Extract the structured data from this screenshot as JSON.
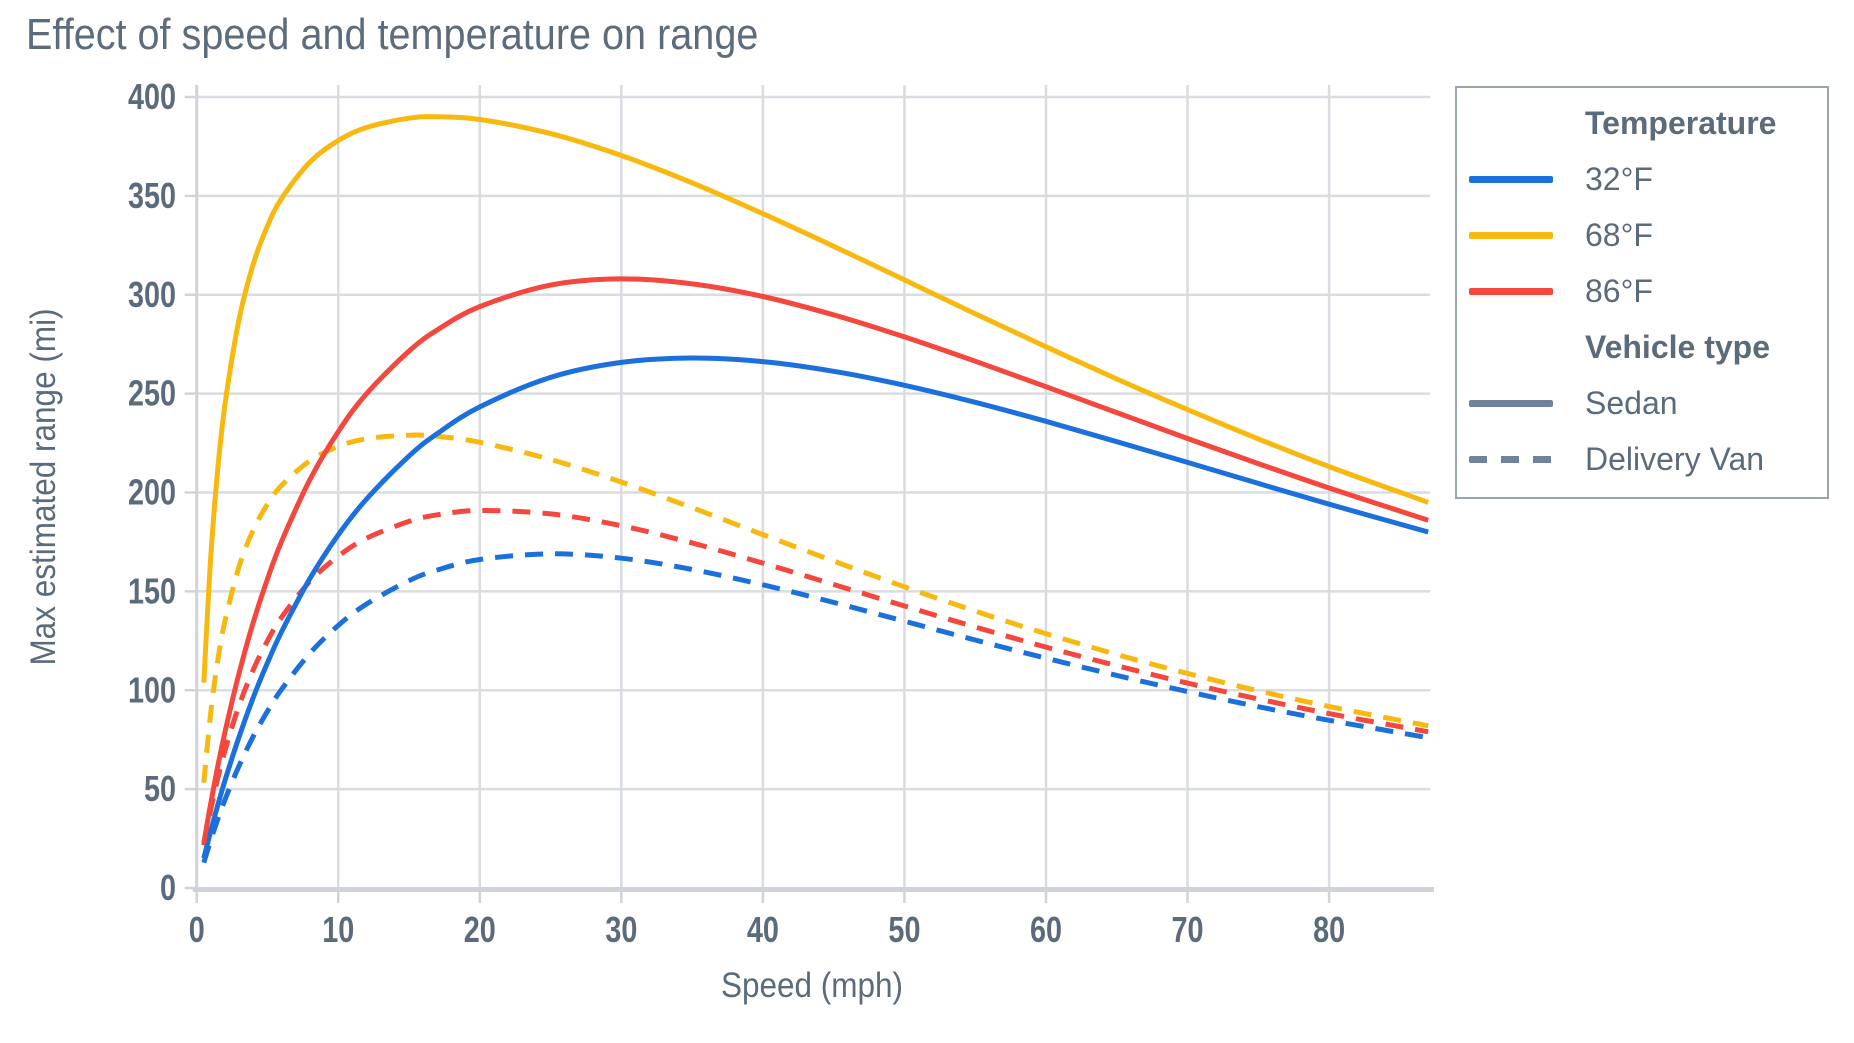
{
  "title": "Effect of speed and temperature on range",
  "axes": {
    "x_label": "Speed (mph)",
    "y_label": "Max estimated range (mi)"
  },
  "colors": {
    "blue": "#1b70dc",
    "yellow": "#f7b80f",
    "red": "#f4473d",
    "legend_gray": "#71839b",
    "text": "#5b6b7c",
    "grid": "#d9dce1",
    "axis": "#d0d4da"
  },
  "legend": {
    "temperature_header": "Temperature",
    "temperature_items": [
      {
        "label": "32°F",
        "color": "#1b70dc"
      },
      {
        "label": "68°F",
        "color": "#f7b80f"
      },
      {
        "label": "86°F",
        "color": "#f4473d"
      }
    ],
    "vehicle_header": "Vehicle type",
    "vehicle_items": [
      {
        "label": "Sedan",
        "line_style": "solid",
        "color": "#71839b"
      },
      {
        "label": "Delivery Van",
        "line_style": "dashed",
        "color": "#71839b"
      }
    ]
  },
  "chart_data": {
    "type": "line",
    "title": "Effect of speed and temperature on range",
    "xlabel": "Speed (mph)",
    "ylabel": "Max estimated range (mi)",
    "xlim": [
      0,
      87
    ],
    "ylim": [
      0,
      406
    ],
    "x_ticks": [
      0,
      10,
      20,
      30,
      40,
      50,
      60,
      70,
      80
    ],
    "y_ticks": [
      0,
      50,
      100,
      150,
      200,
      250,
      300,
      350,
      400
    ],
    "grid": true,
    "legend_position": "upper right",
    "x": [
      0.5,
      1,
      1.5,
      2,
      3,
      4,
      5,
      6,
      8,
      10,
      12,
      15,
      17,
      20,
      25,
      30,
      35,
      40,
      45,
      50,
      55,
      60,
      65,
      70,
      75,
      80,
      87
    ],
    "series": [
      {
        "name": "32°F Sedan",
        "temperature": "32°F",
        "vehicle": "Sedan",
        "color": "#1b70dc",
        "dash": "solid",
        "values": [
          15.0,
          29.1,
          42.1,
          54.4,
          76.6,
          96.4,
          113.9,
          129.6,
          156.5,
          178.6,
          196.7,
          218.4,
          229.8,
          243.3,
          258.2,
          265.8,
          268.0,
          266.2,
          261.3,
          254.2,
          245.6,
          236.0,
          225.7,
          215.2,
          204.6,
          194.1,
          180.0
        ]
      },
      {
        "name": "68°F Sedan",
        "temperature": "68°F",
        "vehicle": "Sedan",
        "color": "#f7b80f",
        "dash": "solid",
        "values": [
          103.8,
          168.5,
          212.6,
          244.6,
          287.9,
          315.6,
          334.8,
          348.7,
          367.1,
          378.0,
          384.6,
          389.3,
          390.0,
          388.6,
          381.5,
          370.4,
          356.6,
          341.0,
          324.5,
          307.5,
          290.4,
          273.7,
          257.4,
          241.9,
          227.1,
          213.1,
          195.0
        ]
      },
      {
        "name": "86°F Sedan",
        "temperature": "86°F",
        "vehicle": "Sedan",
        "color": "#f4473d",
        "dash": "solid",
        "values": [
          22.7,
          43.2,
          61.9,
          78.9,
          108.9,
          134.4,
          156.3,
          175.3,
          206.5,
          230.8,
          250.0,
          271.5,
          282.2,
          294.0,
          304.9,
          308.0,
          305.5,
          299.1,
          289.8,
          278.7,
          266.4,
          253.5,
          240.4,
          227.3,
          214.6,
          202.3,
          186.0
        ]
      },
      {
        "name": "32°F Delivery Van",
        "temperature": "32°F",
        "vehicle": "Delivery Van",
        "color": "#1b70dc",
        "dash": "dashed",
        "values": [
          12.8,
          24.4,
          35.0,
          44.7,
          61.9,
          76.7,
          89.4,
          100.5,
          118.7,
          132.8,
          143.6,
          155.4,
          160.8,
          166.1,
          169.0,
          166.8,
          161.1,
          153.3,
          144.4,
          134.9,
          125.4,
          116.2,
          107.5,
          99.3,
          91.7,
          84.8,
          76.0
        ]
      },
      {
        "name": "68°F Delivery Van",
        "temperature": "68°F",
        "vehicle": "Delivery Van",
        "color": "#f7b80f",
        "dash": "dashed",
        "values": [
          53.3,
          89.4,
          115.4,
          135.1,
          162.7,
          181.1,
          194.1,
          203.6,
          216.1,
          223.3,
          227.2,
          229.0,
          228.4,
          225.4,
          216.7,
          205.3,
          192.3,
          178.7,
          165.3,
          152.3,
          140.0,
          128.6,
          118.1,
          108.5,
          99.7,
          91.8,
          82.0
        ]
      },
      {
        "name": "86°F Delivery Van",
        "temperature": "86°F",
        "vehicle": "Delivery Van",
        "color": "#f4473d",
        "dash": "dashed",
        "values": [
          21.6,
          40.0,
          55.8,
          69.6,
          92.4,
          110.4,
          125.0,
          136.9,
          155.1,
          167.8,
          176.9,
          185.4,
          188.7,
          190.9,
          189.2,
          183.2,
          174.5,
          164.3,
          153.5,
          142.6,
          132.0,
          121.8,
          112.4,
          103.6,
          95.6,
          88.2,
          79.0
        ]
      }
    ]
  }
}
